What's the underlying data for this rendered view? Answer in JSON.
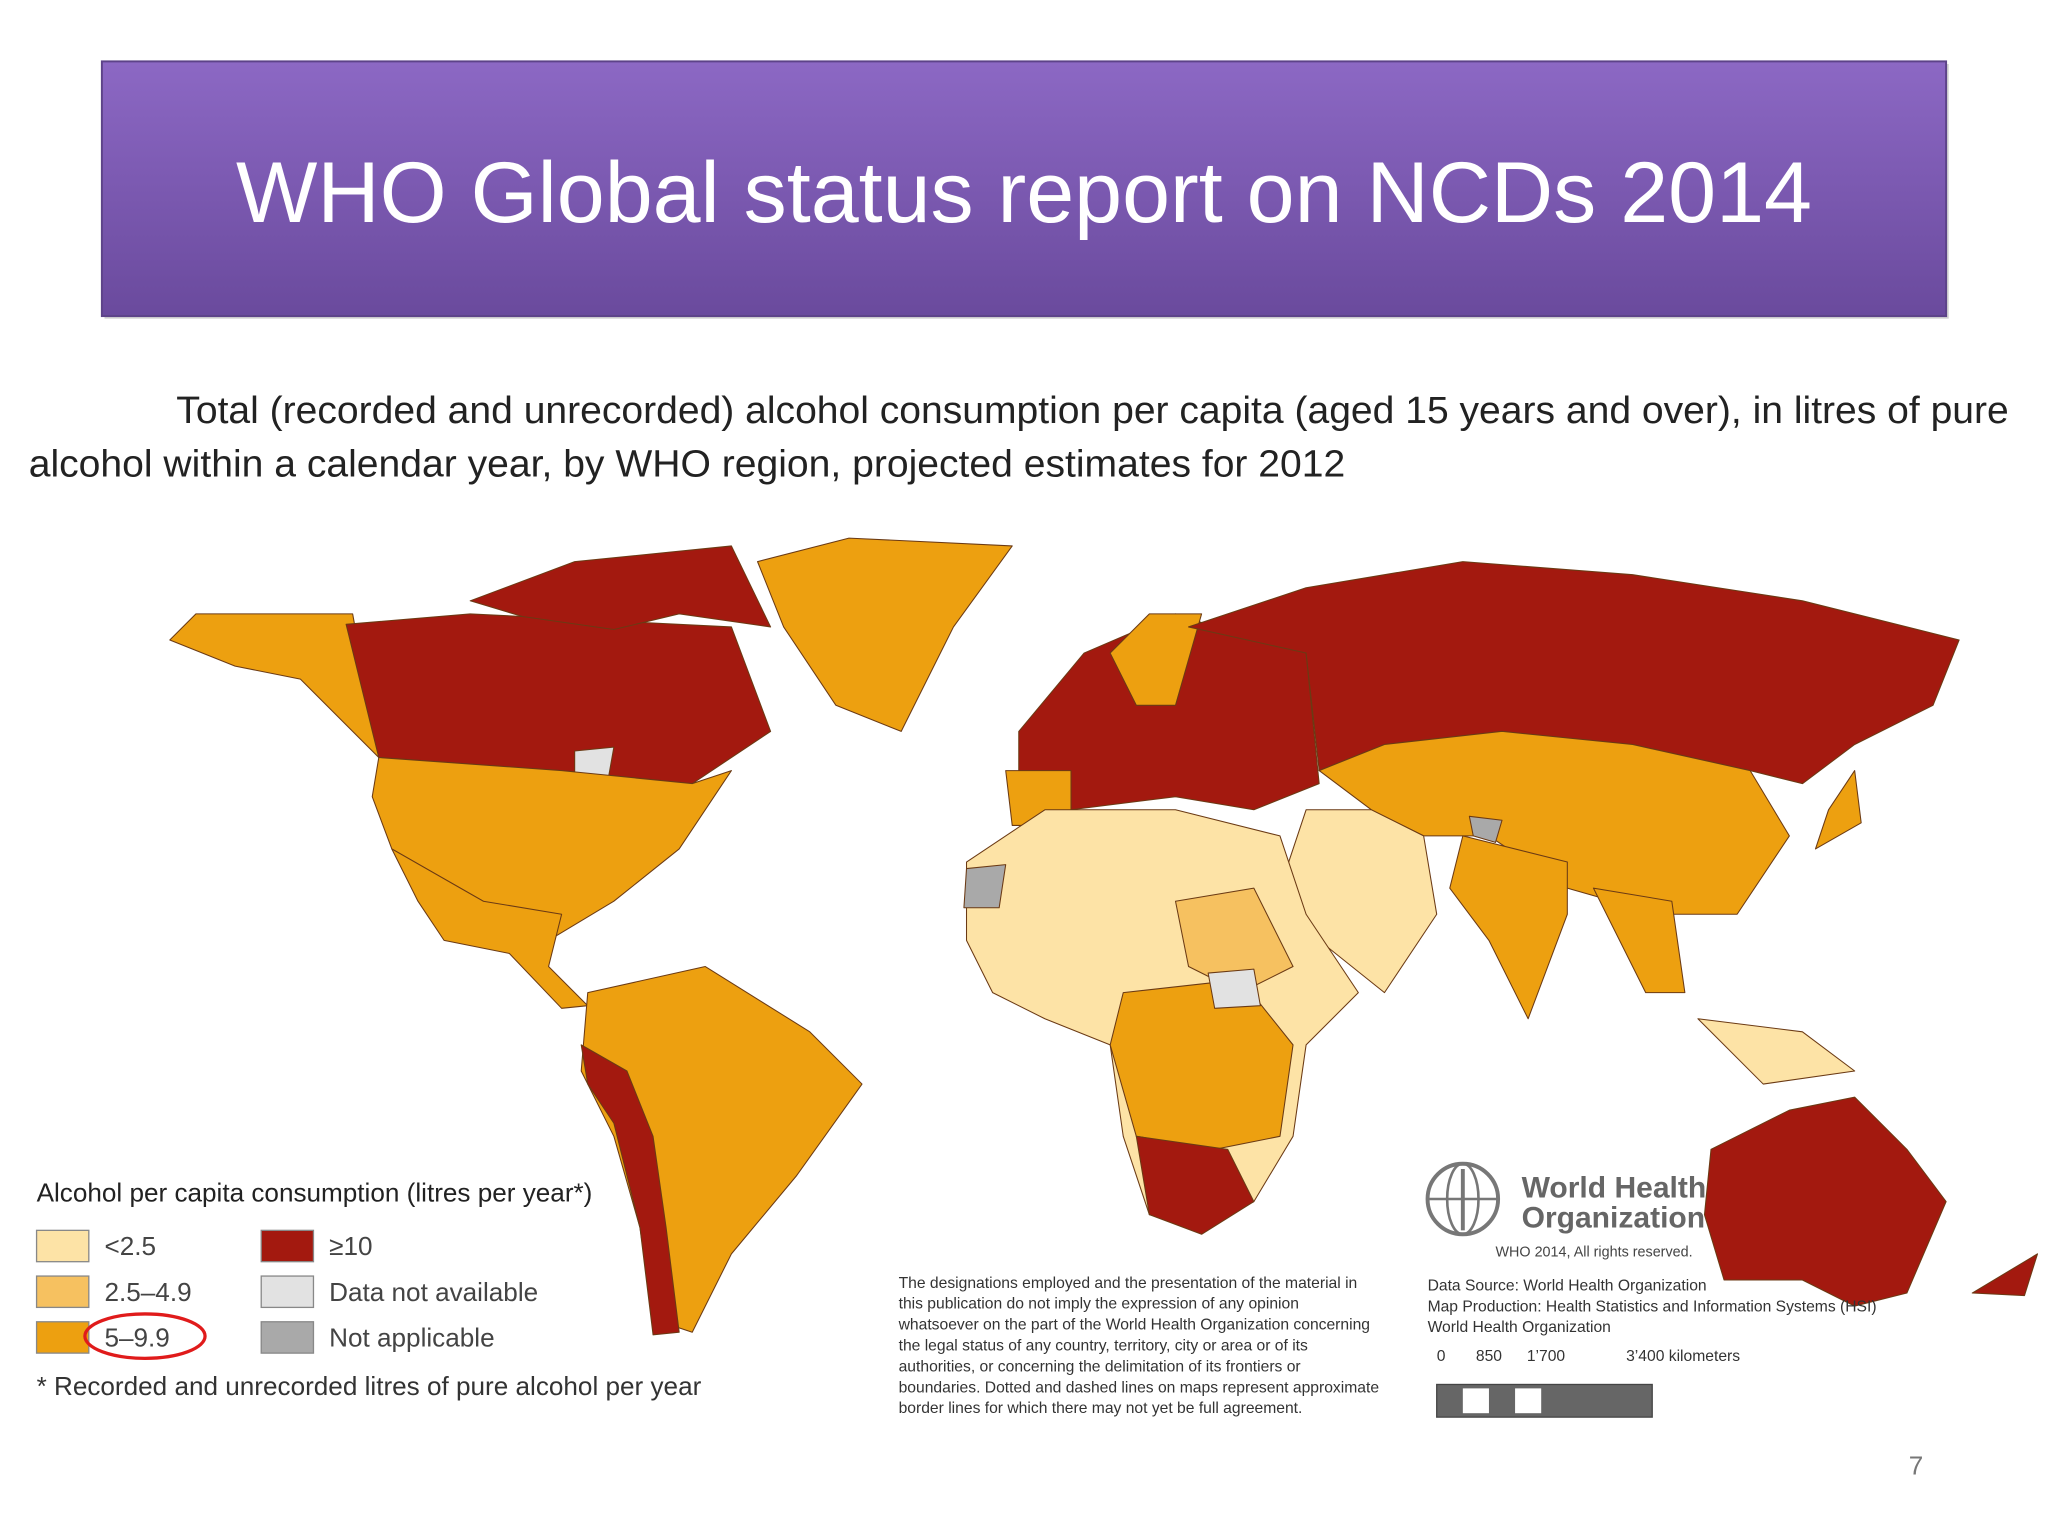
{
  "header": {
    "title": "WHO Global status report on NCDs 2014"
  },
  "subtitle": [
    "Total (recorded and unrecorded) alcohol consumption per capita (aged 15 years and over), in litres of pure",
    "alcohol within a calendar year, by WHO region, projected estimates for 2012"
  ],
  "legend": {
    "title": "Alcohol per capita consumption (litres per year*)",
    "items": [
      {
        "label": "<2.5",
        "color": "#fde3a6"
      },
      {
        "label": "2.5–4.9",
        "color": "#f6c160"
      },
      {
        "label": "5–9.9",
        "color": "#eda010"
      },
      {
        "label": "≥10",
        "color": "#a3190f"
      },
      {
        "label": "Data not available",
        "color": "#e2e2e2"
      },
      {
        "label": "Not applicable",
        "color": "#a9a9a9"
      }
    ],
    "footnote": "* Recorded and unrecorded litres of pure alcohol per year"
  },
  "disclaimer": [
    "The designations employed and the presentation of the material in",
    "this publication do not imply the expression of any opinion",
    "whatsoever on the part of the World Health Organization concerning",
    "the legal status of any country, territory, city or area or of its",
    "authorities, or concerning the delimitation of its frontiers or",
    "boundaries. Dotted and dashed lines on maps represent approximate",
    "border lines for which there may not yet be full agreement."
  ],
  "logo": {
    "line1": "World Health",
    "line2": "Organization",
    "copyright": "WHO 2014, All rights reserved."
  },
  "source": [
    "Data Source: World Health Organization",
    "Map Production: Health Statistics and Information Systems (HSI)",
    "World Health Organization"
  ],
  "scale": {
    "labels": [
      "0",
      "850",
      "1’700",
      "3’400 kilometers"
    ]
  },
  "page_number": "7"
}
